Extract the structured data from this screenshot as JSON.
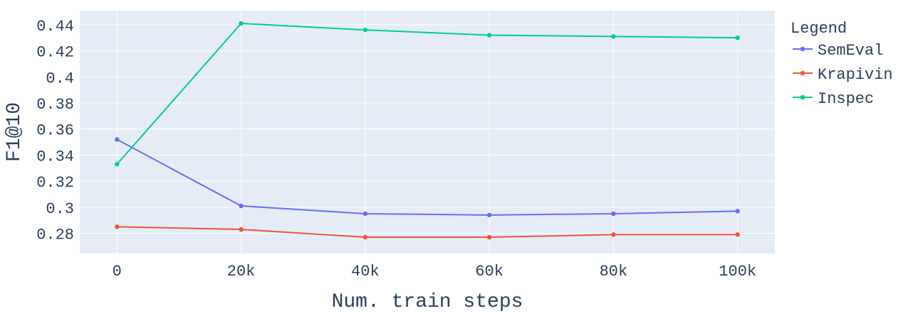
{
  "chart_data": {
    "type": "line",
    "title": "",
    "xlabel": "Num. train steps",
    "ylabel": "F1@10",
    "x": [
      0,
      20000,
      40000,
      60000,
      80000,
      100000
    ],
    "x_tick_labels": [
      "0",
      "20k",
      "40k",
      "60k",
      "80k",
      "100k"
    ],
    "y_ticks": [
      0.28,
      0.3,
      0.32,
      0.34,
      0.36,
      0.38,
      0.4,
      0.42,
      0.44
    ],
    "y_tick_labels": [
      "0.28",
      "0.3",
      "0.32",
      "0.34",
      "0.36",
      "0.38",
      "0.4",
      "0.42",
      "0.44"
    ],
    "xlim": [
      -6000,
      106000
    ],
    "ylim": [
      0.2645,
      0.4508
    ],
    "grid": true,
    "legend": {
      "title": "Legend",
      "placement": "right"
    },
    "background_color": "#e5ecf6",
    "series": [
      {
        "name": "SemEval",
        "color": "#636efa",
        "values": [
          0.352,
          0.301,
          0.295,
          0.294,
          0.295,
          0.297
        ]
      },
      {
        "name": "Krapivin",
        "color": "#ef553b",
        "values": [
          0.285,
          0.283,
          0.277,
          0.277,
          0.279,
          0.279
        ]
      },
      {
        "name": "Inspec",
        "color": "#00cc96",
        "values": [
          0.333,
          0.441,
          0.436,
          0.432,
          0.431,
          0.43
        ]
      }
    ]
  }
}
